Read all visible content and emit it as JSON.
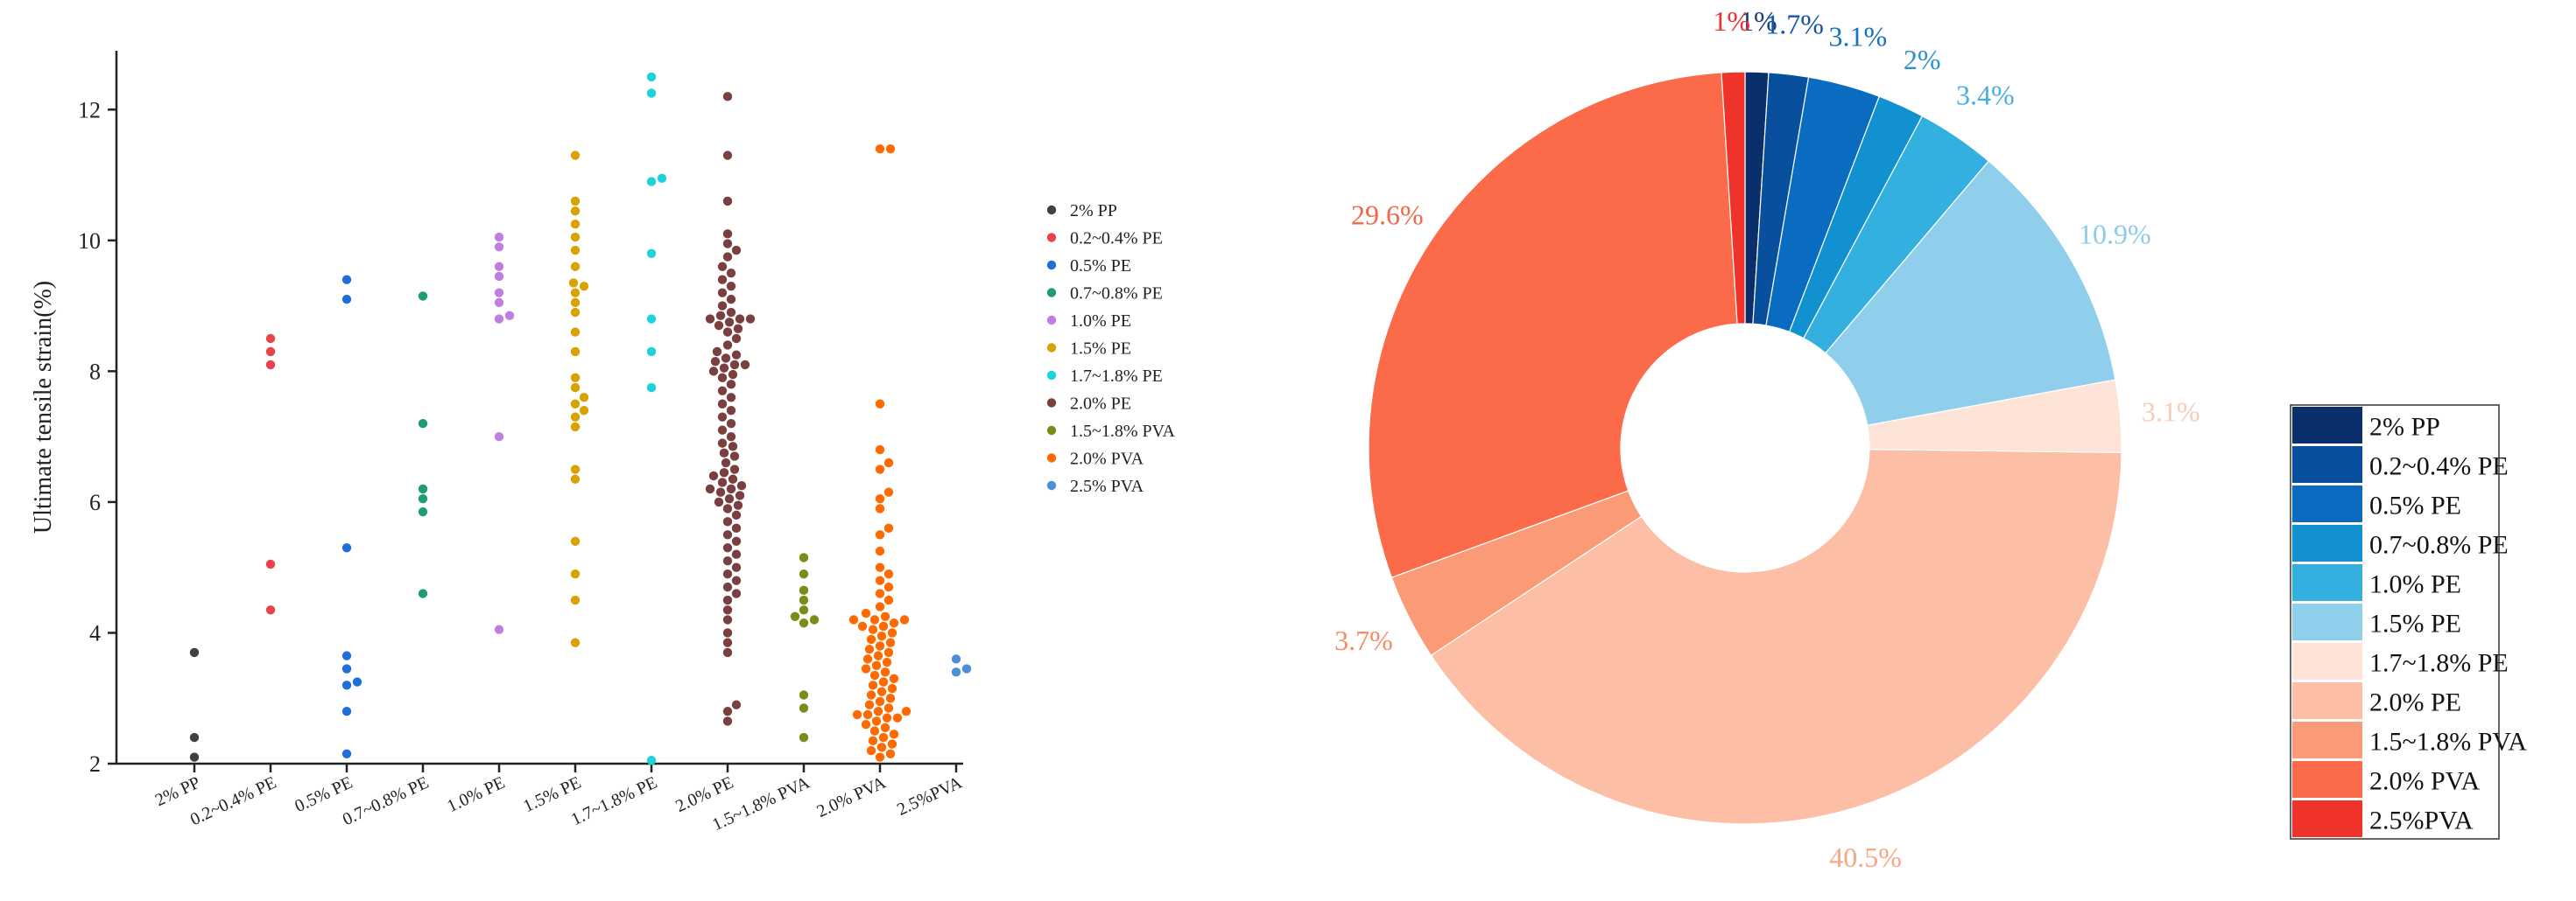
{
  "chart_data": [
    {
      "type": "scatter",
      "subtype": "swarm",
      "xlabel": "",
      "ylabel": "Ultimate tensile strain(%)",
      "ylim": [
        2,
        12.9
      ],
      "yticks": [
        2,
        4,
        6,
        8,
        10,
        12
      ],
      "categories": [
        "2% PP",
        "0.2~0.4% PE",
        "0.5% PE",
        "0.7~0.8% PE",
        "1.0% PE",
        "1.5% PE",
        "1.7~1.8% PE",
        "2.0% PE",
        "1.5~1.8% PVA",
        "2.0% PVA",
        "2.5%PVA"
      ],
      "legend_position": "right",
      "series": [
        {
          "name": "2% PP",
          "color": "#404040",
          "values": [
            3.7,
            2.4,
            2.1
          ]
        },
        {
          "name": "0.2~0.4% PE",
          "color": "#e8424a",
          "values": [
            8.5,
            8.3,
            8.1,
            5.05,
            4.35
          ]
        },
        {
          "name": "0.5% PE",
          "color": "#1f6fd8",
          "values": [
            9.4,
            9.1,
            5.3,
            3.65,
            3.45,
            3.25,
            3.2,
            2.8,
            2.15
          ]
        },
        {
          "name": "0.7~0.8% PE",
          "color": "#1e9e6e",
          "values": [
            9.15,
            7.2,
            6.2,
            6.05,
            5.85,
            4.6
          ]
        },
        {
          "name": "1.0% PE",
          "color": "#c07fe0",
          "values": [
            10.05,
            9.9,
            9.6,
            9.45,
            9.2,
            9.05,
            8.85,
            8.8,
            7.0,
            4.05
          ]
        },
        {
          "name": "1.5% PE",
          "color": "#d8a300",
          "values": [
            11.3,
            10.6,
            10.45,
            10.25,
            10.05,
            9.85,
            9.6,
            9.35,
            9.3,
            9.2,
            9.05,
            8.9,
            8.6,
            8.3,
            7.9,
            7.75,
            7.6,
            7.5,
            7.4,
            7.3,
            7.15,
            6.5,
            6.35,
            5.4,
            4.9,
            4.5,
            3.85
          ]
        },
        {
          "name": "1.7~1.8% PE",
          "color": "#1ed2dc",
          "values": [
            12.5,
            12.25,
            10.95,
            10.9,
            9.8,
            8.8,
            8.3,
            7.75,
            2.05
          ]
        },
        {
          "name": "2.0% PE",
          "color": "#7a4040",
          "values": [
            12.2,
            11.3,
            10.6,
            10.1,
            9.95,
            9.85,
            9.75,
            9.6,
            9.5,
            9.4,
            9.3,
            9.2,
            9.1,
            9.0,
            8.9,
            8.85,
            8.8,
            8.8,
            8.8,
            8.75,
            8.7,
            8.65,
            8.6,
            8.5,
            8.4,
            8.3,
            8.25,
            8.2,
            8.15,
            8.1,
            8.1,
            8.05,
            8.0,
            7.95,
            7.9,
            7.8,
            7.7,
            7.6,
            7.5,
            7.4,
            7.3,
            7.2,
            7.1,
            7.0,
            6.9,
            6.85,
            6.75,
            6.7,
            6.6,
            6.5,
            6.45,
            6.4,
            6.35,
            6.3,
            6.25,
            6.2,
            6.2,
            6.15,
            6.1,
            6.05,
            6.0,
            5.95,
            5.9,
            5.8,
            5.7,
            5.6,
            5.5,
            5.4,
            5.3,
            5.2,
            5.1,
            5.0,
            4.9,
            4.8,
            4.7,
            4.6,
            4.5,
            4.35,
            4.2,
            4.0,
            3.85,
            3.7,
            2.9,
            2.8,
            2.65
          ]
        },
        {
          "name": "1.5~1.8% PVA",
          "color": "#7a8c1a",
          "values": [
            5.15,
            4.9,
            4.65,
            4.5,
            4.35,
            4.25,
            4.2,
            4.15,
            3.05,
            2.85,
            2.4
          ]
        },
        {
          "name": "2.0% PVA",
          "color": "#ff6a00",
          "values": [
            11.4,
            11.4,
            7.5,
            6.8,
            6.6,
            6.5,
            6.15,
            6.05,
            5.9,
            5.6,
            5.5,
            5.25,
            5.0,
            4.9,
            4.8,
            4.7,
            4.6,
            4.5,
            4.4,
            4.3,
            4.25,
            4.2,
            4.2,
            4.2,
            4.15,
            4.1,
            4.1,
            4.05,
            4.0,
            3.95,
            3.9,
            3.85,
            3.8,
            3.75,
            3.7,
            3.65,
            3.6,
            3.55,
            3.5,
            3.45,
            3.4,
            3.35,
            3.3,
            3.25,
            3.2,
            3.15,
            3.1,
            3.05,
            3.0,
            2.95,
            2.9,
            2.85,
            2.8,
            2.8,
            2.75,
            2.75,
            2.7,
            2.7,
            2.65,
            2.6,
            2.55,
            2.5,
            2.45,
            2.4,
            2.35,
            2.3,
            2.25,
            2.2,
            2.15,
            2.1
          ]
        },
        {
          "name": "2.5% PVA",
          "color": "#4a90d8",
          "values": [
            3.6,
            3.45,
            3.4
          ]
        }
      ]
    },
    {
      "type": "pie",
      "subtype": "donut",
      "legend_position": "right",
      "slices": [
        {
          "name": "2% PP",
          "value": 1.0,
          "label": "1%",
          "color": "#0b2f6b",
          "label_color": "#1a3f80"
        },
        {
          "name": "0.2~0.4% PE",
          "value": 1.7,
          "label": "1.7%",
          "color": "#08509e",
          "label_color": "#1057a8"
        },
        {
          "name": "0.5% PE",
          "value": 3.1,
          "label": "3.1%",
          "color": "#0a6cc0",
          "label_color": "#1670c4"
        },
        {
          "name": "0.7~0.8% PE",
          "value": 2.0,
          "label": "2%",
          "color": "#1291d0",
          "label_color": "#2a92d0"
        },
        {
          "name": "1.0% PE",
          "value": 3.4,
          "label": "3.4%",
          "color": "#34b0e0",
          "label_color": "#49aee0"
        },
        {
          "name": "1.5% PE",
          "value": 10.9,
          "label": "10.9%",
          "color": "#90cfec",
          "label_color": "#8ecbe8"
        },
        {
          "name": "1.7~1.8% PE",
          "value": 3.1,
          "label": "3.1%",
          "color": "#fde3d8",
          "label_color": "#f6cdb8"
        },
        {
          "name": "2.0% PE",
          "value": 40.5,
          "label": "40.5%",
          "color": "#fcbea4",
          "label_color": "#f5a886"
        },
        {
          "name": "1.5~1.8% PVA",
          "value": 3.7,
          "label": "3.7%",
          "color": "#fb9a76",
          "label_color": "#f58c66"
        },
        {
          "name": "2.0% PVA",
          "value": 29.6,
          "label": "29.6%",
          "color": "#fb6b4a",
          "label_color": "#f26848"
        },
        {
          "name": "2.5%PVA",
          "value": 1.0,
          "label": "1%",
          "color": "#f0332a",
          "label_color": "#ee3030"
        }
      ]
    }
  ]
}
